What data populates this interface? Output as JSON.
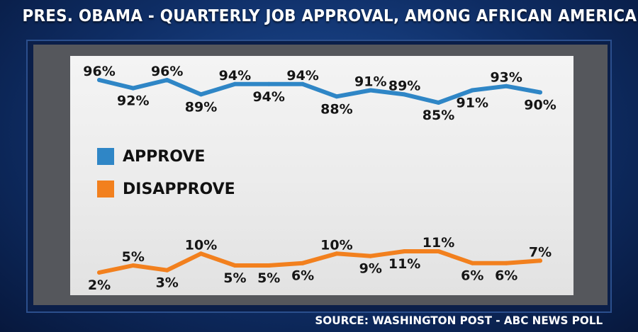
{
  "title": "PRES. OBAMA - QUARTERLY JOB APPROVAL, AMONG AFRICAN AMERICANS",
  "source": "SOURCE: WASHINGTON POST - ABC NEWS POLL",
  "colors": {
    "approve": "#2f86c6",
    "disapprove": "#f2801e"
  },
  "chart_data": {
    "type": "line",
    "title": "PRES. OBAMA - QUARTERLY JOB APPROVAL, AMONG AFRICAN AMERICANS",
    "xlabel": "",
    "ylabel": "",
    "grid": false,
    "legend_position": "left",
    "series": [
      {
        "name": "APPROVE",
        "values": [
          96,
          92,
          96,
          89,
          94,
          94,
          94,
          88,
          91,
          89,
          85,
          91,
          93,
          90
        ],
        "labels": [
          "96%",
          "92%",
          "96%",
          "89%",
          "94%",
          "94%",
          "94%",
          "88%",
          "91%",
          "89%",
          "85%",
          "91%",
          "93%",
          "90%"
        ],
        "label_side": [
          "above",
          "below",
          "above",
          "below",
          "above",
          "below",
          "above",
          "below",
          "above",
          "above",
          "below",
          "below",
          "above",
          "below"
        ]
      },
      {
        "name": "DISAPPROVE",
        "values": [
          2,
          5,
          3,
          10,
          5,
          5,
          6,
          10,
          9,
          11,
          11,
          6,
          6,
          7
        ],
        "labels": [
          "2%",
          "5%",
          "3%",
          "10%",
          "5%",
          "5%",
          "6%",
          "10%",
          "9%",
          "11%",
          "11%",
          "6%",
          "6%",
          "7%"
        ],
        "label_side": [
          "below",
          "above",
          "below",
          "above",
          "below",
          "below",
          "below",
          "above",
          "below",
          "below",
          "above",
          "below",
          "below",
          "above"
        ]
      }
    ]
  }
}
